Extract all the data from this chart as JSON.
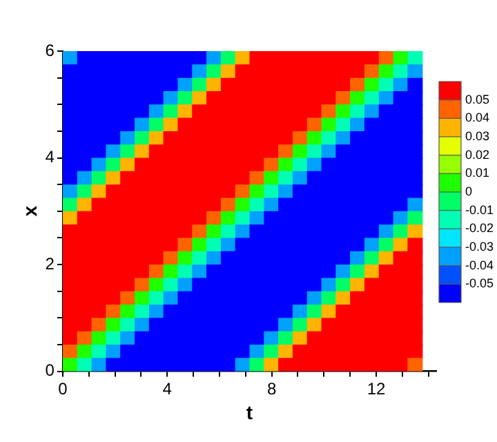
{
  "chart_data": {
    "type": "heatmap",
    "xlabel": "t",
    "ylabel": "x",
    "x": [
      0.275,
      0.825,
      1.375,
      1.925,
      2.475,
      3.025,
      3.575,
      4.125,
      4.675,
      5.225,
      5.775,
      6.325,
      6.875,
      7.425,
      7.975,
      8.525,
      9.075,
      9.625,
      10.175,
      10.725,
      11.275,
      11.825,
      12.375,
      12.925,
      13.475
    ],
    "cells": [
      [
        -0.04,
        -0.055,
        -0.055,
        -0.055,
        -0.055,
        -0.055,
        -0.055,
        -0.055,
        -0.055,
        -0.055,
        -0.04,
        -0.01,
        0.03,
        0.055,
        0.055,
        0.055,
        0.055,
        0.055,
        0.055,
        0.055,
        0.055,
        0.055,
        0.04,
        0.01,
        -0.02
      ],
      [
        -0.055,
        -0.055,
        -0.055,
        -0.055,
        -0.055,
        -0.055,
        -0.055,
        -0.055,
        -0.055,
        -0.04,
        -0.01,
        0.03,
        0.055,
        0.055,
        0.055,
        0.055,
        0.055,
        0.055,
        0.055,
        0.055,
        0.055,
        0.04,
        0.01,
        -0.02,
        -0.04
      ],
      [
        -0.055,
        -0.055,
        -0.055,
        -0.055,
        -0.055,
        -0.055,
        -0.055,
        -0.055,
        -0.04,
        -0.01,
        0.03,
        0.055,
        0.055,
        0.055,
        0.055,
        0.055,
        0.055,
        0.055,
        0.055,
        0.055,
        0.04,
        0.01,
        -0.02,
        -0.04,
        -0.055
      ],
      [
        -0.055,
        -0.055,
        -0.055,
        -0.055,
        -0.055,
        -0.055,
        -0.055,
        -0.04,
        -0.01,
        0.03,
        0.055,
        0.055,
        0.055,
        0.055,
        0.055,
        0.055,
        0.055,
        0.055,
        0.055,
        0.04,
        0.01,
        -0.02,
        -0.04,
        -0.055,
        -0.055
      ],
      [
        -0.055,
        -0.055,
        -0.055,
        -0.055,
        -0.055,
        -0.055,
        -0.04,
        -0.01,
        0.03,
        0.055,
        0.055,
        0.055,
        0.055,
        0.055,
        0.055,
        0.055,
        0.055,
        0.055,
        0.04,
        0.01,
        -0.02,
        -0.04,
        -0.055,
        -0.055,
        -0.055
      ],
      [
        -0.055,
        -0.055,
        -0.055,
        -0.055,
        -0.055,
        -0.04,
        -0.01,
        0.03,
        0.055,
        0.055,
        0.055,
        0.055,
        0.055,
        0.055,
        0.055,
        0.055,
        0.055,
        0.04,
        0.01,
        -0.02,
        -0.04,
        -0.055,
        -0.055,
        -0.055,
        -0.055
      ],
      [
        -0.055,
        -0.055,
        -0.055,
        -0.055,
        -0.04,
        -0.01,
        0.03,
        0.055,
        0.055,
        0.055,
        0.055,
        0.055,
        0.055,
        0.055,
        0.055,
        0.055,
        0.04,
        0.01,
        -0.02,
        -0.04,
        -0.055,
        -0.055,
        -0.055,
        -0.055,
        -0.055
      ],
      [
        -0.055,
        -0.055,
        -0.055,
        -0.04,
        -0.01,
        0.03,
        0.055,
        0.055,
        0.055,
        0.055,
        0.055,
        0.055,
        0.055,
        0.055,
        0.055,
        0.04,
        0.01,
        -0.02,
        -0.04,
        -0.055,
        -0.055,
        -0.055,
        -0.055,
        -0.055,
        -0.055
      ],
      [
        -0.055,
        -0.055,
        -0.04,
        -0.01,
        0.03,
        0.055,
        0.055,
        0.055,
        0.055,
        0.055,
        0.055,
        0.055,
        0.055,
        0.055,
        0.04,
        0.01,
        -0.02,
        -0.04,
        -0.055,
        -0.055,
        -0.055,
        -0.055,
        -0.055,
        -0.055,
        -0.055
      ],
      [
        -0.055,
        -0.04,
        -0.01,
        0.03,
        0.055,
        0.055,
        0.055,
        0.055,
        0.055,
        0.055,
        0.055,
        0.055,
        0.055,
        0.04,
        0.01,
        -0.02,
        -0.04,
        -0.055,
        -0.055,
        -0.055,
        -0.055,
        -0.055,
        -0.055,
        -0.055,
        -0.055
      ],
      [
        -0.04,
        -0.01,
        0.03,
        0.055,
        0.055,
        0.055,
        0.055,
        0.055,
        0.055,
        0.055,
        0.055,
        0.055,
        0.04,
        0.01,
        -0.02,
        -0.04,
        -0.055,
        -0.055,
        -0.055,
        -0.055,
        -0.055,
        -0.055,
        -0.055,
        -0.055,
        -0.055
      ],
      [
        -0.01,
        0.03,
        0.055,
        0.055,
        0.055,
        0.055,
        0.055,
        0.055,
        0.055,
        0.055,
        0.055,
        0.04,
        0.01,
        -0.02,
        -0.04,
        -0.055,
        -0.055,
        -0.055,
        -0.055,
        -0.055,
        -0.055,
        -0.055,
        -0.055,
        -0.055,
        -0.04
      ],
      [
        0.03,
        0.055,
        0.055,
        0.055,
        0.055,
        0.055,
        0.055,
        0.055,
        0.055,
        0.055,
        0.04,
        0.01,
        -0.02,
        -0.04,
        -0.055,
        -0.055,
        -0.055,
        -0.055,
        -0.055,
        -0.055,
        -0.055,
        -0.055,
        -0.055,
        -0.04,
        -0.01
      ],
      [
        0.055,
        0.055,
        0.055,
        0.055,
        0.055,
        0.055,
        0.055,
        0.055,
        0.055,
        0.04,
        0.01,
        -0.02,
        -0.04,
        -0.055,
        -0.055,
        -0.055,
        -0.055,
        -0.055,
        -0.055,
        -0.055,
        -0.055,
        -0.055,
        -0.04,
        -0.01,
        0.03
      ],
      [
        0.055,
        0.055,
        0.055,
        0.055,
        0.055,
        0.055,
        0.055,
        0.055,
        0.04,
        0.01,
        -0.02,
        -0.04,
        -0.055,
        -0.055,
        -0.055,
        -0.055,
        -0.055,
        -0.055,
        -0.055,
        -0.055,
        -0.055,
        -0.04,
        -0.01,
        0.03,
        0.055
      ],
      [
        0.055,
        0.055,
        0.055,
        0.055,
        0.055,
        0.055,
        0.055,
        0.04,
        0.01,
        -0.02,
        -0.04,
        -0.055,
        -0.055,
        -0.055,
        -0.055,
        -0.055,
        -0.055,
        -0.055,
        -0.055,
        -0.055,
        -0.04,
        -0.01,
        0.03,
        0.055,
        0.055
      ],
      [
        0.055,
        0.055,
        0.055,
        0.055,
        0.055,
        0.055,
        0.04,
        0.01,
        -0.02,
        -0.04,
        -0.055,
        -0.055,
        -0.055,
        -0.055,
        -0.055,
        -0.055,
        -0.055,
        -0.055,
        -0.055,
        -0.04,
        -0.01,
        0.03,
        0.055,
        0.055,
        0.055
      ],
      [
        0.055,
        0.055,
        0.055,
        0.055,
        0.055,
        0.04,
        0.01,
        -0.02,
        -0.04,
        -0.055,
        -0.055,
        -0.055,
        -0.055,
        -0.055,
        -0.055,
        -0.055,
        -0.055,
        -0.055,
        -0.04,
        -0.01,
        0.03,
        0.055,
        0.055,
        0.055,
        0.055
      ],
      [
        0.055,
        0.055,
        0.055,
        0.055,
        0.04,
        0.01,
        -0.02,
        -0.04,
        -0.055,
        -0.055,
        -0.055,
        -0.055,
        -0.055,
        -0.055,
        -0.055,
        -0.055,
        -0.055,
        -0.04,
        -0.01,
        0.03,
        0.055,
        0.055,
        0.055,
        0.055,
        0.055
      ],
      [
        0.055,
        0.055,
        0.055,
        0.04,
        0.01,
        -0.02,
        -0.04,
        -0.055,
        -0.055,
        -0.055,
        -0.055,
        -0.055,
        -0.055,
        -0.055,
        -0.055,
        -0.055,
        -0.04,
        -0.01,
        0.03,
        0.055,
        0.055,
        0.055,
        0.055,
        0.055,
        0.055
      ],
      [
        0.055,
        0.055,
        0.04,
        0.01,
        -0.02,
        -0.04,
        -0.055,
        -0.055,
        -0.055,
        -0.055,
        -0.055,
        -0.055,
        -0.055,
        -0.055,
        -0.055,
        -0.04,
        -0.01,
        0.03,
        0.055,
        0.055,
        0.055,
        0.055,
        0.055,
        0.055,
        0.055
      ],
      [
        0.055,
        0.04,
        0.01,
        -0.02,
        -0.04,
        -0.055,
        -0.055,
        -0.055,
        -0.055,
        -0.055,
        -0.055,
        -0.055,
        -0.055,
        -0.055,
        -0.04,
        -0.01,
        0.03,
        0.055,
        0.055,
        0.055,
        0.055,
        0.055,
        0.055,
        0.055,
        0.055
      ],
      [
        0.04,
        0.01,
        -0.02,
        -0.04,
        -0.055,
        -0.055,
        -0.055,
        -0.055,
        -0.055,
        -0.055,
        -0.055,
        -0.055,
        -0.055,
        -0.04,
        -0.01,
        0.03,
        0.055,
        0.055,
        0.055,
        0.055,
        0.055,
        0.055,
        0.055,
        0.055,
        0.055
      ],
      [
        0.01,
        -0.02,
        -0.04,
        -0.055,
        -0.055,
        -0.055,
        -0.055,
        -0.055,
        -0.055,
        -0.055,
        -0.055,
        -0.055,
        -0.04,
        -0.01,
        0.03,
        0.055,
        0.055,
        0.055,
        0.055,
        0.055,
        0.055,
        0.055,
        0.055,
        0.055,
        0.04
      ]
    ],
    "colors": [
      "#0000ff",
      "#0050ff",
      "#00a0ff",
      "#00e6ff",
      "#00ffb4",
      "#00ff64",
      "#1eff00",
      "#96ff00",
      "#e6ff00",
      "#ffb400",
      "#ff6400",
      "#ff0000"
    ],
    "clim": [
      -0.06,
      0.06
    ],
    "cticks": [
      -0.05,
      -0.04,
      -0.03,
      -0.02,
      -0.01,
      0,
      0.01,
      0.02,
      0.03,
      0.04,
      0.05
    ],
    "xlim": [
      0,
      14.3
    ],
    "xticks": [
      0,
      {
        "value": 1,
        "label": null
      },
      {
        "value": 2,
        "label": null
      },
      {
        "value": 3,
        "label": null
      },
      4,
      {
        "value": 5,
        "label": null
      },
      {
        "value": 6,
        "label": null
      },
      {
        "value": 7,
        "label": null
      },
      8,
      {
        "value": 9,
        "label": null
      },
      {
        "value": 10,
        "label": null
      },
      {
        "value": 11,
        "label": null
      },
      12,
      {
        "value": 13,
        "label": null
      },
      {
        "value": 14,
        "label": null
      }
    ],
    "ylim": [
      0,
      6
    ],
    "yticks": [
      0,
      {
        "value": 0.5,
        "label": null
      },
      {
        "value": 1,
        "label": null
      },
      {
        "value": 1.5,
        "label": null
      },
      2,
      {
        "value": 2.5,
        "label": null
      },
      {
        "value": 3,
        "label": null
      },
      {
        "value": 3.5,
        "label": null
      },
      4,
      {
        "value": 4.5,
        "label": null
      },
      {
        "value": 5,
        "label": null
      },
      {
        "value": 5.5,
        "label": null
      },
      6
    ]
  }
}
